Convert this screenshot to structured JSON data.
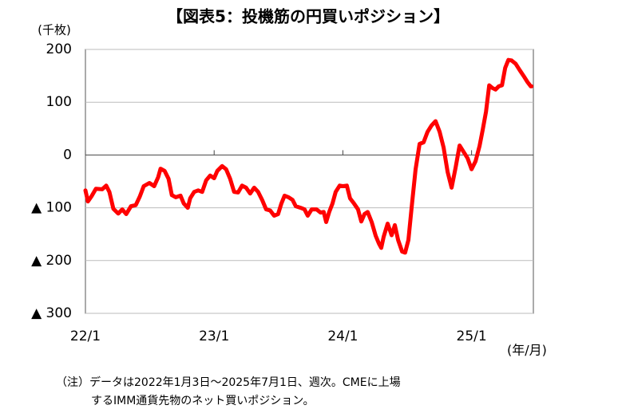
{
  "chart_data": {
    "type": "line",
    "title": "【図表5：投機筋の円買いポジション】",
    "y_unit": "(千枚)",
    "x_unit": "(年/月)",
    "note": [
      "（注）データは2022年1月3日～2025年7月1日、週次。CMEに上場",
      "するIMM通貨先物のネット買いポジション。"
    ],
    "xlim": [
      2022,
      2025.48
    ],
    "xticks": [
      {
        "value": 2022,
        "label": "22/1"
      },
      {
        "value": 2023,
        "label": "23/1"
      },
      {
        "value": 2024,
        "label": "24/1"
      },
      {
        "value": 2025,
        "label": "25/1"
      }
    ],
    "ylim": [
      -300,
      200
    ],
    "yticks": [
      {
        "value": -300,
        "label": "▲ 300"
      },
      {
        "value": -200,
        "label": "▲ 200"
      },
      {
        "value": -100,
        "label": "▲ 100"
      },
      0,
      100,
      200
    ],
    "grid": true,
    "x": [
      2022.0,
      2022.019,
      2022.05,
      2022.081,
      2022.13,
      2022.161,
      2022.186,
      2022.217,
      2022.255,
      2022.286,
      2022.317,
      2022.354,
      2022.391,
      2022.422,
      2022.453,
      2022.497,
      2022.534,
      2022.565,
      2022.584,
      2022.615,
      2022.646,
      2022.671,
      2022.702,
      2022.739,
      2022.764,
      2022.795,
      2022.814,
      2022.845,
      2022.876,
      2022.907,
      2022.938,
      2022.969,
      2023.0,
      2023.025,
      2023.062,
      2023.093,
      2023.124,
      2023.155,
      2023.186,
      2023.217,
      2023.248,
      2023.28,
      2023.311,
      2023.342,
      2023.373,
      2023.404,
      2023.435,
      2023.466,
      2023.497,
      2023.522,
      2023.547,
      2023.578,
      2023.609,
      2023.634,
      2023.671,
      2023.702,
      2023.727,
      2023.758,
      2023.795,
      2023.826,
      2023.851,
      2023.87,
      2023.894,
      2023.919,
      2023.944,
      2023.975,
      2024.0,
      2024.031,
      2024.056,
      2024.087,
      2024.118,
      2024.143,
      2024.168,
      2024.193,
      2024.224,
      2024.255,
      2024.28,
      2024.298,
      2024.317,
      2024.348,
      2024.379,
      2024.404,
      2024.429,
      2024.46,
      2024.484,
      2024.509,
      2024.534,
      2024.565,
      2024.596,
      2024.627,
      2024.658,
      2024.689,
      2024.72,
      2024.752,
      2024.783,
      2024.814,
      2024.845,
      2024.876,
      2024.907,
      2024.938,
      2024.969,
      2025.0,
      2025.031,
      2025.062,
      2025.087,
      2025.112,
      2025.137,
      2025.161,
      2025.186,
      2025.211,
      2025.236,
      2025.261,
      2025.286,
      2025.311,
      2025.342,
      2025.373,
      2025.404,
      2025.435,
      2025.46,
      2025.466
    ],
    "series": [
      {
        "name": "円買いポジション",
        "color": "#ff0000",
        "values": [
          -67,
          -88,
          -77,
          -64,
          -65,
          -58,
          -70,
          -102,
          -111,
          -103,
          -112,
          -97,
          -95,
          -79,
          -59,
          -53,
          -59,
          -42,
          -26,
          -30,
          -45,
          -76,
          -80,
          -77,
          -92,
          -100,
          -82,
          -70,
          -67,
          -70,
          -48,
          -39,
          -44,
          -30,
          -21,
          -27,
          -45,
          -70,
          -71,
          -58,
          -62,
          -73,
          -62,
          -70,
          -85,
          -103,
          -105,
          -115,
          -112,
          -92,
          -77,
          -80,
          -85,
          -97,
          -100,
          -103,
          -115,
          -103,
          -103,
          -109,
          -108,
          -127,
          -108,
          -92,
          -70,
          -58,
          -59,
          -58,
          -82,
          -92,
          -103,
          -126,
          -112,
          -108,
          -127,
          -153,
          -168,
          -176,
          -155,
          -130,
          -152,
          -133,
          -161,
          -183,
          -185,
          -161,
          -100,
          -27,
          21,
          24,
          44,
          56,
          64,
          44,
          14,
          -32,
          -62,
          -24,
          18,
          6,
          -6,
          -27,
          -12,
          17,
          48,
          82,
          132,
          127,
          124,
          130,
          132,
          165,
          180,
          179,
          173,
          161,
          150,
          138,
          130,
          130
        ]
      }
    ]
  }
}
